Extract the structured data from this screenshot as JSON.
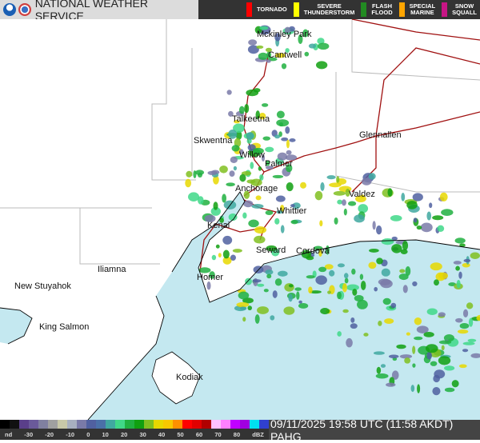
{
  "header": {
    "title": "NATIONAL WEATHER SERVICE",
    "logos": [
      "noaa-logo",
      "nws-logo"
    ]
  },
  "warnings": [
    {
      "label": "TORNADO",
      "color": "#ff0000"
    },
    {
      "label": "SEVERE THUNDERSTORM",
      "color": "#ffff00"
    },
    {
      "label": "FLASH FLOOD",
      "color": "#228b22"
    },
    {
      "label": "SPECIAL MARINE",
      "color": "#ffa500"
    },
    {
      "label": "SNOW SQUALL",
      "color": "#c71585"
    }
  ],
  "places": [
    "Mckinley Park",
    "Cantwell",
    "Talkeetna",
    "Skwentna",
    "Willow",
    "Palmer",
    "Glennallen",
    "Anchorage",
    "Valdez",
    "Whittier",
    "Kenai",
    "Seward",
    "Cordova",
    "Iliamna",
    "New Stuyahok",
    "Homer",
    "King Salmon",
    "Kodiak"
  ],
  "legend": {
    "ticks": [
      "nd",
      "-30",
      "-20",
      "-10",
      "0",
      "10",
      "20",
      "30",
      "40",
      "50",
      "60",
      "70",
      "80",
      "dBZ"
    ],
    "colors": [
      "#000",
      "#111",
      "#5a3f8a",
      "#6a5a9a",
      "#8080a0",
      "#a0a0a0",
      "#c8c8a8",
      "#a8b0c0",
      "#7a7aa8",
      "#5060a0",
      "#4a70a8",
      "#40a8a0",
      "#40d888",
      "#20b040",
      "#10a010",
      "#80c020",
      "#e8d800",
      "#f8c800",
      "#ff9000",
      "#ff0000",
      "#e00000",
      "#b00000",
      "#ffc0ff",
      "#ff80ff",
      "#c000ff",
      "#a000e0",
      "#00e0f0",
      "#3040d0"
    ]
  },
  "timestamp": "09/11/2025 19:58 UTC (11:58 AKDT) PAHG",
  "colors": {
    "water": "#c4e8f0",
    "land": "#ffffff",
    "road": "#a01010",
    "border": "#b8b8b8"
  }
}
